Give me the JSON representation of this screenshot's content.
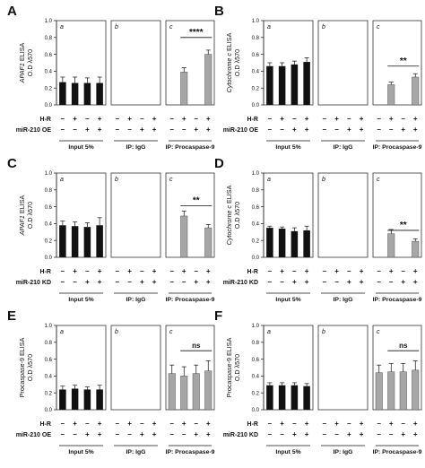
{
  "figure_title": "",
  "common": {
    "ylim": [
      0,
      1.0
    ],
    "yticks": [
      "0.0",
      "0.2",
      "0.4",
      "0.6",
      "0.8",
      "1.0"
    ],
    "groups": [
      "Input 5%",
      "IP: IgG",
      "IP: Procaspase-9"
    ],
    "subpanel_letters": [
      "a",
      "b",
      "c"
    ],
    "hr_label": "H-R",
    "minus": "–",
    "plus": "+",
    "colors": {
      "black_bar": "#111111",
      "grey_bar": "#a6a6a6",
      "frame": "#333333"
    }
  },
  "chart_data": [
    {
      "type": "bar",
      "panel": "A",
      "ylabel_line1": "APAF1 ELISA",
      "ylabel_line2": "O.D λ570",
      "ylabel_italic": "APAF1",
      "treatment_label": "miR-210 OE",
      "hr_signs": [
        "–",
        "+",
        "–",
        "+"
      ],
      "treat_signs": [
        "–",
        "–",
        "+",
        "+"
      ],
      "series": [
        {
          "group": "Input 5%",
          "values": [
            0.27,
            0.26,
            0.26,
            0.26
          ],
          "errors": [
            0.06,
            0.07,
            0.06,
            0.07
          ]
        },
        {
          "group": "IP: IgG",
          "values": [
            0,
            0,
            0,
            0
          ],
          "errors": [
            0,
            0,
            0,
            0
          ]
        },
        {
          "group": "IP: Procaspase-9",
          "values": [
            null,
            0.39,
            null,
            0.6
          ],
          "errors": [
            0,
            0.05,
            0,
            0.05
          ]
        }
      ],
      "significance": {
        "text": "****",
        "group": 2,
        "from": 1,
        "to": 3,
        "level": 0.8
      }
    },
    {
      "type": "bar",
      "panel": "B",
      "ylabel_line1": "Cytochrome c ELISA",
      "ylabel_line2": "O.D λ570",
      "ylabel_italic": "Cytochrome c",
      "treatment_label": "miR-210 OE",
      "hr_signs": [
        "–",
        "+",
        "–",
        "+"
      ],
      "treat_signs": [
        "–",
        "–",
        "+",
        "+"
      ],
      "series": [
        {
          "group": "Input 5%",
          "values": [
            0.46,
            0.46,
            0.48,
            0.51
          ],
          "errors": [
            0.04,
            0.04,
            0.04,
            0.05
          ]
        },
        {
          "group": "IP: IgG",
          "values": [
            0,
            0,
            0,
            0
          ],
          "errors": [
            0,
            0,
            0,
            0
          ]
        },
        {
          "group": "IP: Procaspase-9",
          "values": [
            null,
            0.24,
            null,
            0.33
          ],
          "errors": [
            0,
            0.03,
            0,
            0.04
          ]
        }
      ],
      "significance": {
        "text": "**",
        "group": 2,
        "from": 1,
        "to": 3,
        "level": 0.46
      }
    },
    {
      "type": "bar",
      "panel": "C",
      "ylabel_line1": "APAF1 ELISA",
      "ylabel_line2": "O.D λ570",
      "ylabel_italic": "APAF1",
      "treatment_label": "miR-210 KD",
      "hr_signs": [
        "–",
        "+",
        "–",
        "+"
      ],
      "treat_signs": [
        "–",
        "–",
        "+",
        "+"
      ],
      "series": [
        {
          "group": "Input 5%",
          "values": [
            0.38,
            0.37,
            0.36,
            0.38
          ],
          "errors": [
            0.05,
            0.05,
            0.05,
            0.09
          ]
        },
        {
          "group": "IP: IgG",
          "values": [
            0,
            0,
            0,
            0
          ],
          "errors": [
            0,
            0,
            0,
            0
          ]
        },
        {
          "group": "IP: Procaspase-9",
          "values": [
            null,
            0.49,
            null,
            0.35
          ],
          "errors": [
            0,
            0.06,
            0,
            0.04
          ]
        }
      ],
      "significance": {
        "text": "**",
        "group": 2,
        "from": 1,
        "to": 3,
        "level": 0.61
      }
    },
    {
      "type": "bar",
      "panel": "D",
      "ylabel_line1": "Cytochrome c ELISA",
      "ylabel_line2": "O.D λ570",
      "ylabel_italic": "Cytochrome c",
      "treatment_label": "miR-210 KD",
      "hr_signs": [
        "–",
        "+",
        "–",
        "+"
      ],
      "treat_signs": [
        "–",
        "–",
        "+",
        "+"
      ],
      "series": [
        {
          "group": "Input 5%",
          "values": [
            0.35,
            0.34,
            0.31,
            0.32
          ],
          "errors": [
            0.02,
            0.02,
            0.04,
            0.05
          ]
        },
        {
          "group": "IP: IgG",
          "values": [
            0,
            0,
            0,
            0
          ],
          "errors": [
            0,
            0,
            0,
            0
          ]
        },
        {
          "group": "IP: Procaspase-9",
          "values": [
            null,
            0.28,
            null,
            0.19
          ],
          "errors": [
            0,
            0.05,
            0,
            0.03
          ]
        }
      ],
      "significance": {
        "text": "**",
        "group": 2,
        "from": 1,
        "to": 3,
        "level": 0.32
      }
    },
    {
      "type": "bar",
      "panel": "E",
      "ylabel_line1": "Procaspase-9 ELISA",
      "ylabel_line2": "O.D λ570",
      "ylabel_italic": "",
      "treatment_label": "miR-210 OE",
      "hr_signs": [
        "–",
        "+",
        "–",
        "+"
      ],
      "treat_signs": [
        "–",
        "–",
        "+",
        "+"
      ],
      "series": [
        {
          "group": "Input 5%",
          "values": [
            0.24,
            0.25,
            0.24,
            0.24
          ],
          "errors": [
            0.04,
            0.04,
            0.03,
            0.05
          ]
        },
        {
          "group": "IP: IgG",
          "values": [
            0,
            0,
            0,
            0
          ],
          "errors": [
            0,
            0,
            0,
            0
          ]
        },
        {
          "group": "IP: Procaspase-9",
          "values": [
            0.43,
            0.4,
            0.43,
            0.46
          ],
          "errors": [
            0.1,
            0.11,
            0.1,
            0.12
          ]
        }
      ],
      "significance": {
        "text": "ns",
        "group": 2,
        "from": 1,
        "to": 3,
        "level": 0.7
      }
    },
    {
      "type": "bar",
      "panel": "F",
      "ylabel_line1": "Procaspase-9 ELISA",
      "ylabel_line2": "O.D λ570",
      "ylabel_italic": "",
      "treatment_label": "miR-210 KD",
      "hr_signs": [
        "–",
        "+",
        "–",
        "+"
      ],
      "treat_signs": [
        "–",
        "–",
        "+",
        "+"
      ],
      "series": [
        {
          "group": "Input 5%",
          "values": [
            0.29,
            0.29,
            0.29,
            0.28
          ],
          "errors": [
            0.03,
            0.03,
            0.03,
            0.03
          ]
        },
        {
          "group": "IP: IgG",
          "values": [
            0,
            0,
            0,
            0
          ],
          "errors": [
            0,
            0,
            0,
            0
          ]
        },
        {
          "group": "IP: Procaspase-9",
          "values": [
            0.44,
            0.45,
            0.45,
            0.47
          ],
          "errors": [
            0.09,
            0.1,
            0.1,
            0.11
          ]
        }
      ],
      "significance": {
        "text": "ns",
        "group": 2,
        "from": 1,
        "to": 3,
        "level": 0.7
      }
    }
  ]
}
